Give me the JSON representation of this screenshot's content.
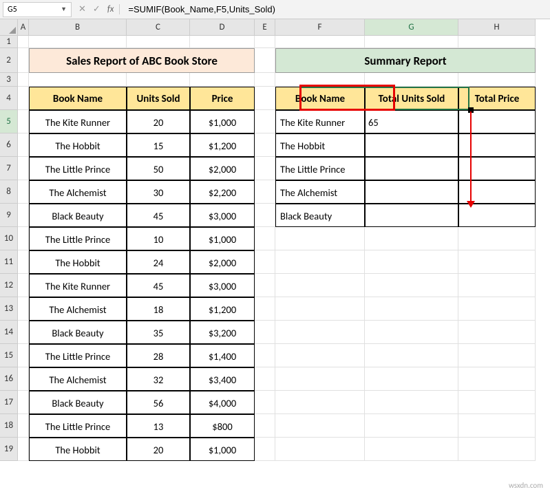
{
  "nameBox": "G5",
  "formula": "=SUMIF(Book_Name,F5,Units_Sold)",
  "columns": [
    "A",
    "B",
    "C",
    "D",
    "E",
    "F",
    "G",
    "H"
  ],
  "activeCol": "G",
  "activeRow": "5",
  "title1": "Sales Report of ABC Book Store",
  "title2": "Summary Report",
  "headers1": {
    "b": "Book Name",
    "c": "Units Sold",
    "d": "Price"
  },
  "headers2": {
    "f": "Book Name",
    "g": "Total Units Sold",
    "h": "Total Price"
  },
  "sales": [
    {
      "name": "The Kite Runner",
      "units": "20",
      "price": "$1,000"
    },
    {
      "name": "The Hobbit",
      "units": "15",
      "price": "$1,200"
    },
    {
      "name": "The Little Prince",
      "units": "50",
      "price": "$2,000"
    },
    {
      "name": "The Alchemist",
      "units": "30",
      "price": "$2,200"
    },
    {
      "name": "Black Beauty",
      "units": "45",
      "price": "$3,000"
    },
    {
      "name": "The Little Prince",
      "units": "10",
      "price": "$1,000"
    },
    {
      "name": "The Hobbit",
      "units": "24",
      "price": "$2,000"
    },
    {
      "name": "The Kite Runner",
      "units": "45",
      "price": "$3,000"
    },
    {
      "name": "The Alchemist",
      "units": "18",
      "price": "$1,200"
    },
    {
      "name": "Black Beauty",
      "units": "35",
      "price": "$3,200"
    },
    {
      "name": "The Little Prince",
      "units": "28",
      "price": "$1,400"
    },
    {
      "name": "The Alchemist",
      "units": "32",
      "price": "$3,400"
    },
    {
      "name": "Black Beauty",
      "units": "56",
      "price": "$4,000"
    },
    {
      "name": "The Little Prince",
      "units": "13",
      "price": "$800"
    },
    {
      "name": "The Hobbit",
      "units": "20",
      "price": "$1,000"
    }
  ],
  "summary": [
    {
      "name": "The Kite Runner",
      "total": "65"
    },
    {
      "name": "The Hobbit",
      "total": ""
    },
    {
      "name": "The Little Prince",
      "total": ""
    },
    {
      "name": "The Alchemist",
      "total": ""
    },
    {
      "name": "Black Beauty",
      "total": ""
    }
  ],
  "watermark": "wsxdn.com"
}
